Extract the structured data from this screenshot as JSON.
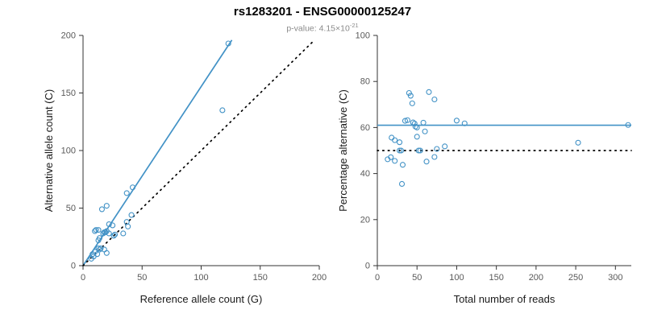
{
  "header": {
    "title": "rs1283201 - ENSG00000125247",
    "pvalue_prefix": "p-value: 4.15×10",
    "pvalue_exponent": "-21"
  },
  "style": {
    "accent_blue": "#4292c6",
    "dotted_line_color": "#000000",
    "axis_color": "#333333",
    "tick_label_color": "#595959",
    "axis_title_color": "#1a1a1a",
    "subtitle_color": "#8a8a8a",
    "background": "#ffffff"
  },
  "chart_data": [
    {
      "type": "scatter",
      "title": "",
      "xlabel": "Reference allele count (G)",
      "ylabel": "Alternative allele count (C)",
      "xlim": [
        0,
        200
      ],
      "ylim": [
        0,
        200
      ],
      "xticks": [
        0,
        50,
        100,
        150,
        200
      ],
      "yticks": [
        0,
        50,
        100,
        150,
        200
      ],
      "grid": false,
      "legend": "none",
      "x": [
        7,
        8,
        9,
        10,
        10,
        11,
        12,
        13,
        13,
        13,
        14,
        14,
        15,
        16,
        17,
        18,
        18,
        19,
        20,
        20,
        20,
        22,
        22,
        25,
        26,
        27,
        34,
        37,
        37,
        38,
        41,
        42,
        118,
        123
      ],
      "y": [
        6,
        10,
        8,
        12,
        30,
        31,
        10,
        15,
        22,
        31,
        14,
        24,
        15,
        49,
        28,
        14,
        29,
        29,
        11,
        30,
        52,
        28,
        36,
        35,
        26,
        27,
        28,
        38,
        63,
        34,
        44,
        68,
        135,
        193
      ],
      "lines": [
        {
          "name": "regression-line",
          "style": "solid",
          "color": "#4292c6",
          "x": [
            0,
            126
          ],
          "y": [
            0,
            196
          ]
        },
        {
          "name": "identity-line",
          "style": "dotted",
          "color": "#000000",
          "x": [
            0,
            196
          ],
          "y": [
            0,
            196
          ]
        }
      ]
    },
    {
      "type": "scatter",
      "title": "",
      "xlabel": "Total number of reads",
      "ylabel": "Percentage alternative (C)",
      "xlim": [
        0,
        320
      ],
      "ylim": [
        0,
        100
      ],
      "xticks": [
        0,
        50,
        100,
        150,
        200,
        250,
        300
      ],
      "yticks": [
        0,
        20,
        40,
        60,
        80,
        100
      ],
      "grid": false,
      "legend": "none",
      "x": [
        13,
        18,
        17,
        22,
        40,
        42,
        22,
        28,
        35,
        44,
        28,
        38,
        30,
        65,
        45,
        32,
        47,
        48,
        31,
        50,
        72,
        50,
        58,
        60,
        52,
        54,
        62,
        75,
        100,
        72,
        85,
        110,
        253,
        316
      ],
      "y": [
        46.2,
        55.6,
        47.1,
        54.5,
        75,
        73.8,
        45.5,
        53.6,
        62.9,
        70.5,
        50,
        63.2,
        50,
        75.4,
        62.2,
        43.8,
        61.7,
        60.4,
        35.5,
        60,
        72.2,
        56,
        62.1,
        58.3,
        50,
        50,
        45.2,
        50.7,
        63,
        47.2,
        51.8,
        61.8,
        53.4,
        61.1
      ],
      "lines": [
        {
          "name": "mean-percentage-line",
          "style": "solid",
          "color": "#4292c6",
          "x": [
            0,
            320
          ],
          "y": [
            61,
            61
          ]
        },
        {
          "name": "fifty-percent-line",
          "style": "dotted",
          "color": "#000000",
          "x": [
            0,
            320
          ],
          "y": [
            50,
            50
          ]
        }
      ]
    }
  ]
}
